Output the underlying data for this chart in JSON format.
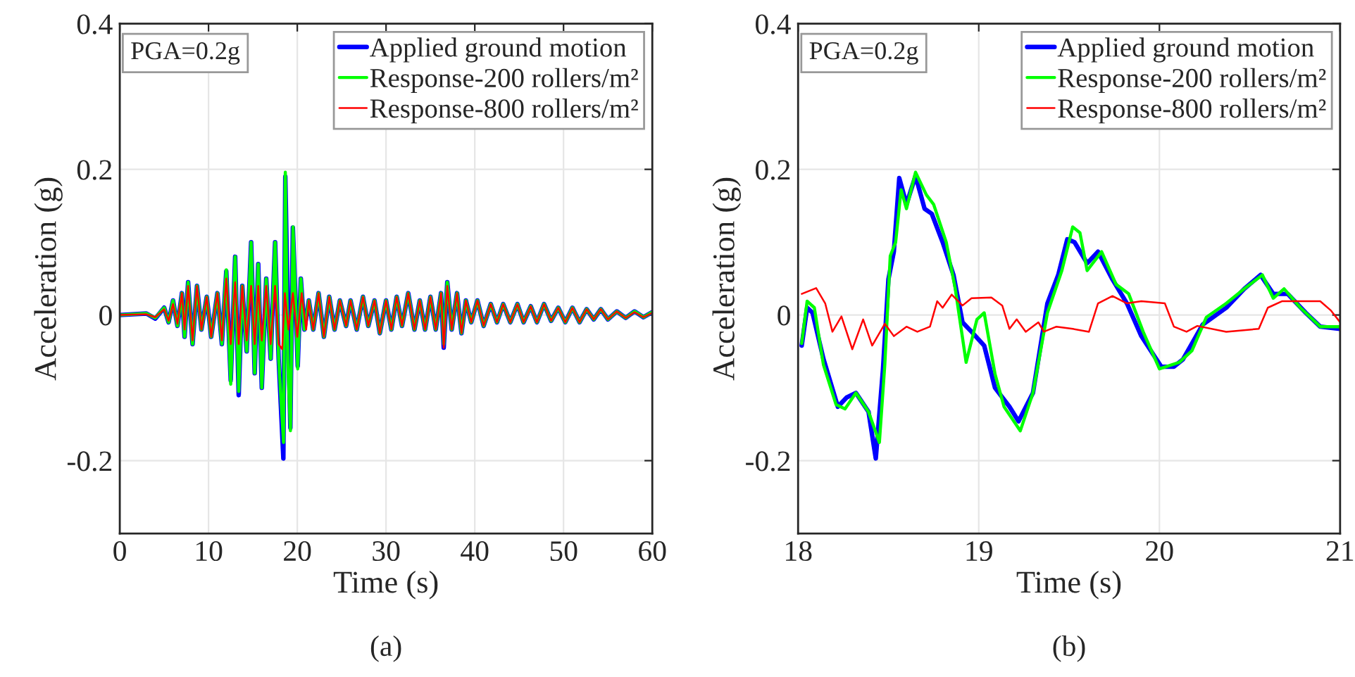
{
  "chart_data": [
    {
      "type": "line",
      "xlabel": "Time (s)",
      "ylabel": "Acceleration (g)",
      "annotations": [
        "PGA=0.2g",
        "(a)"
      ],
      "xlim": [
        0,
        60
      ],
      "ylim": [
        -0.3,
        0.4
      ],
      "xticks": [
        0,
        10,
        20,
        30,
        40,
        50,
        60
      ],
      "yticks": [
        -0.2,
        0,
        0.2,
        0.4
      ],
      "grid": true,
      "legend": "top right",
      "line_style": "solid",
      "marker": "none",
      "series": [
        {
          "name": "Applied ground motion",
          "color": "#0000ff",
          "x": [
            0,
            3,
            4,
            5,
            5.5,
            6,
            6.5,
            7,
            7.3,
            7.7,
            8.2,
            8.7,
            9.2,
            9.8,
            10.3,
            11,
            11.5,
            12,
            12.5,
            13,
            13.4,
            13.8,
            14.3,
            14.8,
            15.2,
            15.6,
            16,
            16.5,
            17,
            17.5,
            17.9,
            18.43,
            18.65,
            19.0,
            19.22,
            19.5,
            19.8,
            20.05,
            20.4,
            20.8,
            21.3,
            21.8,
            22.4,
            23,
            23.6,
            24.2,
            24.8,
            25.5,
            26,
            26.7,
            27.4,
            28,
            28.7,
            29.3,
            30,
            30.6,
            31.2,
            31.8,
            32.5,
            33.2,
            33.8,
            34.4,
            35,
            35.6,
            36.2,
            36.5,
            36.9,
            37.4,
            38,
            38.5,
            39,
            39.6,
            40.3,
            41,
            41.8,
            42.5,
            43.2,
            44,
            44.8,
            45.5,
            46.3,
            47,
            47.8,
            48.6,
            49.4,
            50.2,
            51,
            51.8,
            52.6,
            53.4,
            54.2,
            55,
            56,
            57,
            58,
            59,
            60
          ],
          "values": [
            0,
            0.002,
            -0.005,
            0.01,
            -0.01,
            0.02,
            -0.015,
            0.03,
            -0.03,
            0.045,
            -0.04,
            0.04,
            -0.02,
            0.025,
            -0.03,
            0.03,
            -0.04,
            0.06,
            -0.09,
            0.08,
            -0.11,
            0.04,
            -0.05,
            0.1,
            -0.08,
            0.07,
            -0.1,
            0.05,
            -0.06,
            0.1,
            -0.06,
            -0.197,
            0.19,
            -0.04,
            -0.155,
            0.12,
            0.02,
            -0.07,
            0.05,
            -0.02,
            0.02,
            -0.02,
            0.03,
            -0.03,
            0.025,
            -0.02,
            0.02,
            -0.015,
            0.02,
            -0.02,
            0.025,
            -0.015,
            0.02,
            -0.025,
            0.02,
            -0.02,
            0.025,
            -0.015,
            0.03,
            -0.02,
            0.02,
            -0.02,
            0.025,
            -0.02,
            0.03,
            -0.045,
            0.045,
            -0.02,
            0.03,
            -0.025,
            0.02,
            -0.01,
            0.02,
            -0.015,
            0.015,
            -0.01,
            0.015,
            -0.01,
            0.015,
            -0.01,
            0.012,
            -0.01,
            0.015,
            -0.008,
            0.01,
            -0.01,
            0.01,
            -0.01,
            0.008,
            -0.006,
            0.008,
            -0.006,
            0.005,
            -0.004,
            0.005,
            -0.003,
            0.004
          ]
        },
        {
          "name": "Response-200 rollers/m²",
          "color": "#00ff00",
          "x": [
            0,
            3,
            4,
            5,
            5.5,
            6,
            6.5,
            7,
            7.3,
            7.7,
            8.2,
            8.7,
            9.2,
            9.8,
            10.3,
            11,
            11.5,
            12,
            12.5,
            13,
            13.4,
            13.8,
            14.3,
            14.8,
            15.2,
            15.6,
            16,
            16.5,
            17,
            17.5,
            17.9,
            18.45,
            18.65,
            18.93,
            19.23,
            19.52,
            19.8,
            20.05,
            20.4,
            20.8,
            21.3,
            21.8,
            22.4,
            23,
            23.6,
            24.2,
            24.8,
            25.5,
            26,
            26.7,
            27.4,
            28,
            28.7,
            29.3,
            30,
            30.6,
            31.2,
            31.8,
            32.5,
            33.2,
            33.8,
            34.4,
            35,
            35.6,
            36.2,
            36.5,
            36.9,
            37.4,
            38,
            38.5,
            39,
            39.6,
            40.3,
            41,
            41.8,
            42.5,
            43.2,
            44,
            44.8,
            45.5,
            46.3,
            47,
            47.8,
            48.6,
            49.4,
            50.2,
            51,
            51.8,
            52.6,
            53.4,
            54.2,
            55,
            56,
            57,
            58,
            59,
            60
          ],
          "values": [
            0,
            0.002,
            -0.004,
            0.01,
            -0.01,
            0.02,
            -0.015,
            0.03,
            -0.03,
            0.045,
            -0.04,
            0.04,
            -0.02,
            0.025,
            -0.03,
            0.03,
            -0.04,
            0.062,
            -0.095,
            0.08,
            -0.105,
            0.04,
            -0.05,
            0.1,
            -0.08,
            0.07,
            -0.1,
            0.05,
            -0.06,
            0.1,
            -0.06,
            -0.175,
            0.196,
            -0.065,
            -0.159,
            0.121,
            0.02,
            -0.074,
            0.05,
            -0.02,
            0.02,
            -0.02,
            0.03,
            -0.03,
            0.025,
            -0.02,
            0.02,
            -0.015,
            0.02,
            -0.02,
            0.025,
            -0.015,
            0.02,
            -0.025,
            0.02,
            -0.02,
            0.025,
            -0.015,
            0.03,
            -0.02,
            0.02,
            -0.02,
            0.025,
            -0.02,
            0.03,
            -0.04,
            0.045,
            -0.02,
            0.03,
            -0.025,
            0.02,
            -0.01,
            0.02,
            -0.015,
            0.015,
            -0.01,
            0.015,
            -0.01,
            0.015,
            -0.01,
            0.012,
            -0.01,
            0.015,
            -0.008,
            0.01,
            -0.01,
            0.01,
            -0.01,
            0.008,
            -0.006,
            0.008,
            -0.006,
            0.005,
            -0.004,
            0.005,
            -0.003,
            0.004
          ]
        },
        {
          "name": "Response-800 rollers/m²",
          "color": "#ff0000",
          "x": [
            0,
            3,
            4,
            5,
            5.5,
            6,
            6.5,
            7,
            7.3,
            7.7,
            8.2,
            8.7,
            9.2,
            9.8,
            10.3,
            11,
            11.5,
            12,
            12.5,
            13,
            13.4,
            13.8,
            14.3,
            14.8,
            15.2,
            15.6,
            16,
            16.5,
            17,
            17.5,
            17.9,
            18.3,
            18.6,
            19.0,
            19.5,
            20.0,
            20.5,
            21.0,
            21.3,
            21.8,
            22.4,
            23,
            23.6,
            24.2,
            24.8,
            25.5,
            26,
            26.7,
            27.4,
            28,
            28.7,
            29.3,
            30,
            30.6,
            31.2,
            31.8,
            32.5,
            33.2,
            33.8,
            34.4,
            35,
            35.6,
            36.2,
            36.5,
            36.9,
            37.4,
            38,
            38.5,
            39,
            39.6,
            40.3,
            41,
            41.8,
            42.5,
            43.2,
            44,
            44.8,
            45.5,
            46.3,
            47,
            47.8,
            48.6,
            49.4,
            50.2,
            51,
            51.8,
            52.6,
            53.4,
            54.2,
            55,
            56,
            57,
            58,
            59,
            60
          ],
          "values": [
            0,
            0.001,
            -0.003,
            0.008,
            -0.008,
            0.015,
            -0.012,
            0.03,
            -0.02,
            0.04,
            -0.035,
            0.04,
            -0.02,
            0.025,
            -0.03,
            0.03,
            -0.035,
            0.05,
            -0.04,
            0.045,
            -0.04,
            0.04,
            -0.035,
            0.04,
            -0.04,
            0.04,
            -0.035,
            0.04,
            -0.04,
            0.04,
            -0.04,
            -0.047,
            0.03,
            -0.02,
            0.03,
            -0.03,
            0.03,
            -0.02,
            0.02,
            -0.02,
            0.03,
            -0.03,
            0.025,
            -0.02,
            0.02,
            -0.015,
            0.02,
            -0.02,
            0.025,
            -0.015,
            0.02,
            -0.025,
            0.02,
            -0.02,
            0.025,
            -0.015,
            0.03,
            -0.02,
            0.02,
            -0.02,
            0.025,
            -0.02,
            0.03,
            -0.045,
            0.04,
            -0.02,
            0.03,
            -0.025,
            0.02,
            -0.01,
            0.02,
            -0.015,
            0.015,
            -0.01,
            0.015,
            -0.01,
            0.015,
            -0.01,
            0.012,
            -0.01,
            0.015,
            -0.008,
            0.01,
            -0.01,
            0.01,
            -0.01,
            0.008,
            -0.006,
            0.008,
            -0.006,
            0.005,
            -0.004,
            0.004,
            -0.003,
            0.003
          ]
        }
      ]
    },
    {
      "type": "line",
      "xlabel": "Time (s)",
      "ylabel": "Acceleration (g)",
      "annotations": [
        "PGA=0.2g",
        "(b)"
      ],
      "xlim": [
        18,
        21
      ],
      "ylim": [
        -0.3,
        0.4
      ],
      "xticks": [
        18,
        19,
        20,
        21
      ],
      "yticks": [
        -0.2,
        0,
        0.2,
        0.4
      ],
      "grid": true,
      "legend": "top right",
      "line_style": "solid",
      "marker": "none",
      "series": [
        {
          "name": "Applied ground motion",
          "color": "#0000ff",
          "x": [
            18.02,
            18.05,
            18.08,
            18.14,
            18.22,
            18.27,
            18.32,
            18.39,
            18.43,
            18.47,
            18.5,
            18.53,
            18.56,
            18.6,
            18.65,
            18.7,
            18.74,
            18.8,
            18.86,
            18.91,
            18.96,
            19.03,
            19.09,
            19.17,
            19.22,
            19.3,
            19.38,
            19.44,
            19.49,
            19.53,
            19.6,
            19.66,
            19.74,
            19.82,
            19.9,
            20.01,
            20.08,
            20.13,
            20.24,
            20.37,
            20.47,
            20.56,
            20.63,
            20.71,
            20.81,
            20.89,
            21.0
          ],
          "values": [
            -0.042,
            0.01,
            0.003,
            -0.06,
            -0.126,
            -0.113,
            -0.107,
            -0.133,
            -0.197,
            -0.074,
            0.049,
            0.087,
            0.188,
            0.152,
            0.191,
            0.146,
            0.139,
            0.1,
            0.055,
            -0.01,
            -0.023,
            -0.042,
            -0.1,
            -0.126,
            -0.146,
            -0.107,
            0.016,
            0.055,
            0.104,
            0.1,
            0.071,
            0.087,
            0.049,
            0.016,
            -0.029,
            -0.071,
            -0.071,
            -0.061,
            -0.013,
            0.01,
            0.036,
            0.055,
            0.029,
            0.029,
            0.003,
            -0.016,
            -0.019
          ]
        },
        {
          "name": "Response-200 rollers/m²",
          "color": "#00ff00",
          "x": [
            18.02,
            18.05,
            18.09,
            18.14,
            18.21,
            18.26,
            18.32,
            18.39,
            18.45,
            18.48,
            18.51,
            18.54,
            18.57,
            18.6,
            18.65,
            18.71,
            18.75,
            18.82,
            18.87,
            18.93,
            18.99,
            19.03,
            19.09,
            19.14,
            19.23,
            19.3,
            19.38,
            19.46,
            19.52,
            19.56,
            19.6,
            19.68,
            19.76,
            19.83,
            19.91,
            20.0,
            20.11,
            20.18,
            20.26,
            20.37,
            20.47,
            20.57,
            20.63,
            20.69,
            20.78,
            20.89,
            21.0
          ],
          "values": [
            -0.039,
            0.019,
            0.01,
            -0.068,
            -0.123,
            -0.129,
            -0.107,
            -0.133,
            -0.175,
            -0.068,
            0.081,
            0.1,
            0.172,
            0.146,
            0.196,
            0.165,
            0.152,
            0.1,
            0.036,
            -0.065,
            -0.006,
            0.003,
            -0.081,
            -0.126,
            -0.159,
            -0.107,
            0.003,
            0.061,
            0.121,
            0.113,
            0.061,
            0.087,
            0.042,
            0.029,
            -0.023,
            -0.074,
            -0.065,
            -0.049,
            -0.003,
            0.016,
            0.036,
            0.055,
            0.023,
            0.036,
            0.01,
            -0.016,
            -0.016
          ]
        },
        {
          "name": "Response-800 rollers/m²",
          "color": "#ff0000",
          "x": [
            18.02,
            18.1,
            18.15,
            18.19,
            18.24,
            18.3,
            18.36,
            18.41,
            18.48,
            18.53,
            18.6,
            18.66,
            18.73,
            18.77,
            18.8,
            18.85,
            18.91,
            18.96,
            19.07,
            19.13,
            19.17,
            19.21,
            19.26,
            19.33,
            19.36,
            19.43,
            19.52,
            19.61,
            19.66,
            19.74,
            19.82,
            19.9,
            20.03,
            20.08,
            20.15,
            20.21,
            20.37,
            20.55,
            20.6,
            20.68,
            20.89,
            20.95,
            21.0
          ],
          "values": [
            0.029,
            0.037,
            0.016,
            -0.023,
            -0.002,
            -0.047,
            -0.006,
            -0.042,
            -0.012,
            -0.029,
            -0.016,
            -0.023,
            -0.016,
            0.019,
            0.01,
            0.028,
            0.013,
            0.023,
            0.024,
            0.013,
            -0.019,
            -0.006,
            -0.023,
            -0.01,
            -0.023,
            -0.016,
            -0.019,
            -0.023,
            0.016,
            0.026,
            0.016,
            0.019,
            0.016,
            -0.016,
            -0.023,
            -0.015,
            -0.023,
            -0.019,
            0.01,
            0.019,
            0.019,
            0.006,
            -0.01
          ]
        }
      ]
    }
  ]
}
